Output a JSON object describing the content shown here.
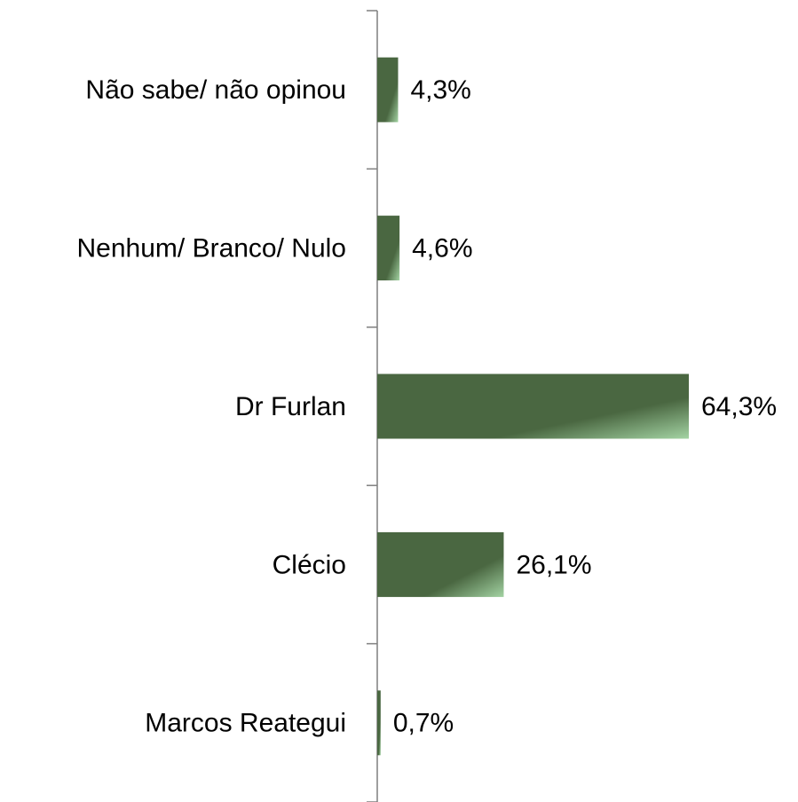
{
  "chart_data": {
    "type": "bar",
    "orientation": "horizontal",
    "categories": [
      "Não sabe/ não opinou",
      "Nenhum/ Branco/ Nulo",
      "Dr Furlan",
      "Clécio",
      "Marcos Reategui"
    ],
    "values": [
      4.3,
      4.6,
      64.3,
      26.1,
      0.7
    ],
    "value_labels": [
      "4,3%",
      "4,6%",
      "64,3%",
      "26,1%",
      "0,7%"
    ],
    "color": "#4a6741"
  }
}
